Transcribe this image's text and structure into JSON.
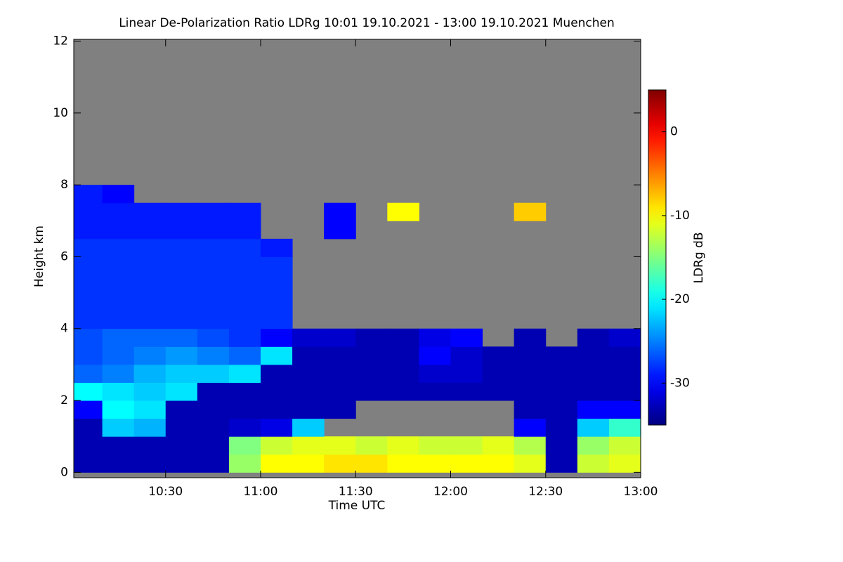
{
  "chart_data": {
    "type": "heatmap",
    "title": "Linear De-Polarization Ratio LDRg   10:01 19.10.2021 - 13:00 19.10.2021 Muenchen",
    "x_label": "Time UTC",
    "y_label": "Height km",
    "colorbar_label": "LDRg dB",
    "colormap": "jet",
    "x_edges": [
      601,
      610,
      620,
      630,
      640,
      650,
      660,
      670,
      680,
      690,
      700,
      710,
      720,
      730,
      740,
      750,
      760,
      770,
      780
    ],
    "y_edges": [
      0,
      0.5,
      1,
      1.5,
      2,
      2.5,
      3,
      3.5,
      4,
      4.5,
      5,
      5.5,
      6,
      6.5,
      7,
      7.5,
      8,
      8.5,
      9,
      9.5,
      10,
      10.5,
      11,
      11.5,
      12
    ],
    "z": [
      [
        -33,
        -33,
        -33,
        -33,
        -33,
        -14,
        -10,
        -10,
        -9,
        -9,
        -10,
        -10,
        -10,
        -10,
        -11,
        -33,
        -12,
        -11
      ],
      [
        -33,
        -33,
        -33,
        -33,
        -33,
        -15,
        -12,
        -11,
        -11,
        -12,
        -11,
        -12,
        -12,
        -11,
        -13,
        -33,
        -14,
        -12
      ],
      [
        -33,
        -22,
        -23,
        -33,
        -33,
        -32,
        -31,
        -22,
        null,
        null,
        null,
        null,
        null,
        null,
        -30,
        -33,
        -22,
        -18
      ],
      [
        -30,
        -20,
        -21,
        -33,
        -33,
        -33,
        -33,
        -33,
        -33,
        null,
        null,
        null,
        null,
        null,
        -33,
        -33,
        -30,
        -30
      ],
      [
        -20,
        -21,
        -22,
        -21,
        -33,
        -33,
        -33,
        -33,
        -33,
        -33,
        -33,
        -33,
        -33,
        -33,
        -33,
        -33,
        -33,
        -33
      ],
      [
        -26,
        -25,
        -23,
        -22,
        -22,
        -21,
        -33,
        -33,
        -33,
        -33,
        -33,
        -32,
        -32,
        -33,
        -33,
        -33,
        -33,
        -33
      ],
      [
        -27,
        -26,
        -25,
        -24,
        -25,
        -26,
        -21,
        -33,
        -33,
        -33,
        -33,
        -30,
        -32,
        -33,
        -33,
        -33,
        -33,
        -33
      ],
      [
        -27,
        -26,
        -26,
        -26,
        -27,
        -28,
        -30,
        -32,
        -32,
        -33,
        -33,
        -31,
        -30,
        null,
        -33,
        null,
        -33,
        -32
      ],
      [
        -28,
        -28,
        -28,
        -28,
        -28,
        -28,
        -28,
        null,
        null,
        null,
        null,
        null,
        null,
        null,
        null,
        null,
        null,
        null
      ],
      [
        -28,
        -28,
        -28,
        -28,
        -28,
        -28,
        -28,
        null,
        null,
        null,
        null,
        null,
        null,
        null,
        null,
        null,
        null,
        null
      ],
      [
        -28,
        -28,
        -28,
        -28,
        -28,
        -28,
        -28,
        null,
        null,
        null,
        null,
        null,
        null,
        null,
        null,
        null,
        null,
        null
      ],
      [
        -28,
        -28,
        -28,
        -28,
        -28,
        -28,
        -28,
        null,
        null,
        null,
        null,
        null,
        null,
        null,
        null,
        null,
        null,
        null
      ],
      [
        -28,
        -28,
        -28,
        -28,
        -28,
        -28,
        -29,
        null,
        null,
        null,
        null,
        null,
        null,
        null,
        null,
        null,
        null,
        null
      ],
      [
        -29,
        -29,
        -29,
        -29,
        -29,
        -29,
        null,
        null,
        -30,
        null,
        null,
        null,
        null,
        null,
        null,
        null,
        null,
        null
      ],
      [
        -29,
        -29,
        -29,
        -29,
        -29,
        -29,
        null,
        null,
        -30,
        null,
        -10,
        null,
        null,
        null,
        -8,
        null,
        null,
        null
      ],
      [
        -29,
        -30,
        null,
        null,
        null,
        null,
        null,
        null,
        null,
        null,
        null,
        null,
        null,
        null,
        null,
        null,
        null,
        null
      ],
      [
        null,
        null,
        null,
        null,
        null,
        null,
        null,
        null,
        null,
        null,
        null,
        null,
        null,
        null,
        null,
        null,
        null,
        null
      ],
      [
        null,
        null,
        null,
        null,
        null,
        null,
        null,
        null,
        null,
        null,
        null,
        null,
        null,
        null,
        null,
        null,
        null,
        null
      ],
      [
        null,
        null,
        null,
        null,
        null,
        null,
        null,
        null,
        null,
        null,
        null,
        null,
        null,
        null,
        null,
        null,
        null,
        null
      ],
      [
        null,
        null,
        null,
        null,
        null,
        null,
        null,
        null,
        null,
        null,
        null,
        null,
        null,
        null,
        null,
        null,
        null,
        null
      ],
      [
        null,
        null,
        null,
        null,
        null,
        null,
        null,
        null,
        null,
        null,
        null,
        null,
        null,
        null,
        null,
        null,
        null,
        null
      ],
      [
        null,
        null,
        null,
        null,
        null,
        null,
        null,
        null,
        null,
        null,
        null,
        null,
        null,
        null,
        null,
        null,
        null,
        null
      ],
      [
        null,
        null,
        null,
        null,
        null,
        null,
        null,
        null,
        null,
        null,
        null,
        null,
        null,
        null,
        null,
        null,
        null,
        null
      ],
      [
        null,
        null,
        null,
        null,
        null,
        null,
        null,
        null,
        null,
        null,
        null,
        null,
        null,
        null,
        null,
        null,
        null,
        null
      ]
    ],
    "xlim": [
      601,
      780
    ],
    "xticks": [
      {
        "value": 630,
        "label": "10:30"
      },
      {
        "value": 660,
        "label": "11:00"
      },
      {
        "value": 690,
        "label": "11:30"
      },
      {
        "value": 720,
        "label": "12:00"
      },
      {
        "value": 750,
        "label": "12:30"
      },
      {
        "value": 780,
        "label": "13:00"
      }
    ],
    "ylim": [
      -0.15,
      12.05
    ],
    "yticks": [
      0,
      2,
      4,
      6,
      8,
      10,
      12
    ],
    "zlim": [
      -35,
      5
    ],
    "zticks": [
      0,
      -10,
      -20,
      -30
    ]
  }
}
